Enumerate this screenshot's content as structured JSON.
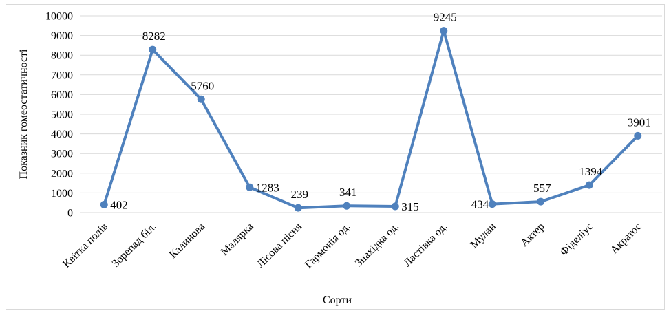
{
  "chart_data": {
    "type": "line",
    "title": "",
    "xlabel": "Сорти",
    "ylabel": "Показник гомеостатичності",
    "categories": [
      "Квітка полів",
      "Зорепад біл.",
      "Калинова",
      "Малярка",
      "Лісова пісня",
      "Гармонія од.",
      "Знахідка од.",
      "Ластівка од.",
      "Мулан",
      "Актер",
      "Фіделіус",
      "Акратос"
    ],
    "series": [
      {
        "values": [
          402,
          8282,
          5760,
          1283,
          239,
          341,
          315,
          9245,
          434,
          557,
          1394,
          3901
        ]
      }
    ],
    "ylim": [
      0,
      10000
    ],
    "yticks": [
      "0",
      "1000",
      "2000",
      "3000",
      "4000",
      "5000",
      "6000",
      "7000",
      "8000",
      "9000",
      "10000"
    ],
    "data_labels": [
      "402",
      "8282",
      "5760",
      "1283",
      "239",
      "341",
      "315",
      "9245",
      "434",
      "557",
      "1394",
      "3901"
    ],
    "grid": true,
    "legend": "none",
    "series_color": "#4f81bd"
  }
}
